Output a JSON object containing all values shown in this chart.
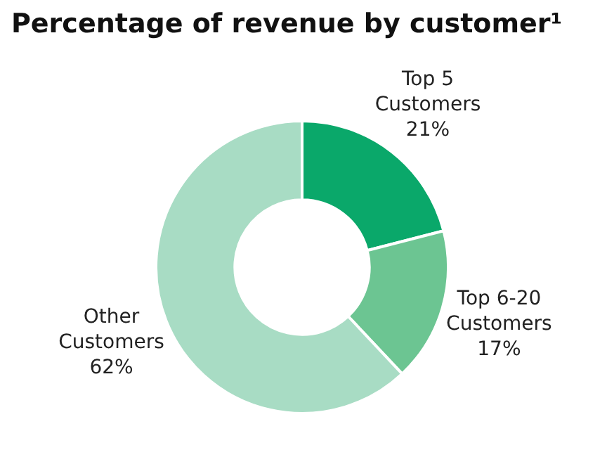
{
  "chart_data": {
    "type": "donut",
    "title": "Percentage of revenue by customer¹",
    "categories": [
      "Top 5 Customers",
      "Top 6-20 Customers",
      "Other Customers"
    ],
    "values": [
      21,
      17,
      62
    ],
    "value_labels": [
      "21%",
      "17%",
      "62%"
    ],
    "colors": [
      "#0aa86a",
      "#6cc592",
      "#a8dcc4"
    ],
    "legend": false
  }
}
